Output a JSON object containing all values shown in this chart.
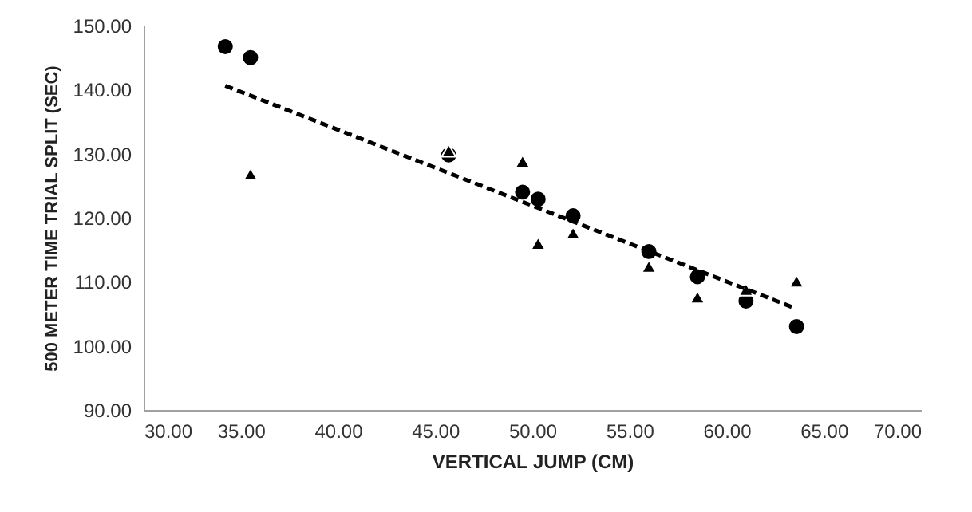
{
  "chart_data": {
    "type": "scatter",
    "xlabel": "VERTICAL JUMP (CM)",
    "ylabel": "500 METER TIME TRIAL SPLIT (SEC)",
    "xlim": [
      30,
      70
    ],
    "ylim": [
      90,
      150
    ],
    "xticks": [
      {
        "value": 30,
        "label": "30.00"
      },
      {
        "value": 35,
        "label": "35.00"
      },
      {
        "value": 40,
        "label": "40.00"
      },
      {
        "value": 45,
        "label": "45.00"
      },
      {
        "value": 50,
        "label": "50.00"
      },
      {
        "value": 55,
        "label": "55.00"
      },
      {
        "value": 60,
        "label": "60.00"
      },
      {
        "value": 65,
        "label": "65.00"
      },
      {
        "value": 70,
        "label": "70.00"
      }
    ],
    "yticks": [
      {
        "value": 90,
        "label": "90.00"
      },
      {
        "value": 100,
        "label": "100.00"
      },
      {
        "value": 110,
        "label": "110.00"
      },
      {
        "value": 120,
        "label": "120.00"
      },
      {
        "value": 130,
        "label": "130.00"
      },
      {
        "value": 140,
        "label": "140.00"
      },
      {
        "value": 150,
        "label": "150.00"
      }
    ],
    "grid": false,
    "legend": false,
    "series": [
      {
        "marker": "circle",
        "color": "#000000",
        "x": [
          34.2,
          35.5,
          45.7,
          49.5,
          50.3,
          52.1,
          56.0,
          58.5,
          61.0,
          63.6
        ],
        "values": [
          146.7,
          145.0,
          129.8,
          124.0,
          122.9,
          120.3,
          114.7,
          110.8,
          107.0,
          103.0
        ]
      },
      {
        "marker": "triangle",
        "color": "#000000",
        "x": [
          35.5,
          45.7,
          49.5,
          50.3,
          52.1,
          56.0,
          58.5,
          61.0,
          63.6
        ],
        "values": [
          126.8,
          130.5,
          128.8,
          116.0,
          117.6,
          112.4,
          107.6,
          108.8,
          110.1
        ]
      },
      {
        "type": "line",
        "marker": "none",
        "line_style": "dashed",
        "color": "#000000",
        "x": [
          34.2,
          63.5
        ],
        "values": [
          140.6,
          105.9
        ]
      }
    ]
  }
}
